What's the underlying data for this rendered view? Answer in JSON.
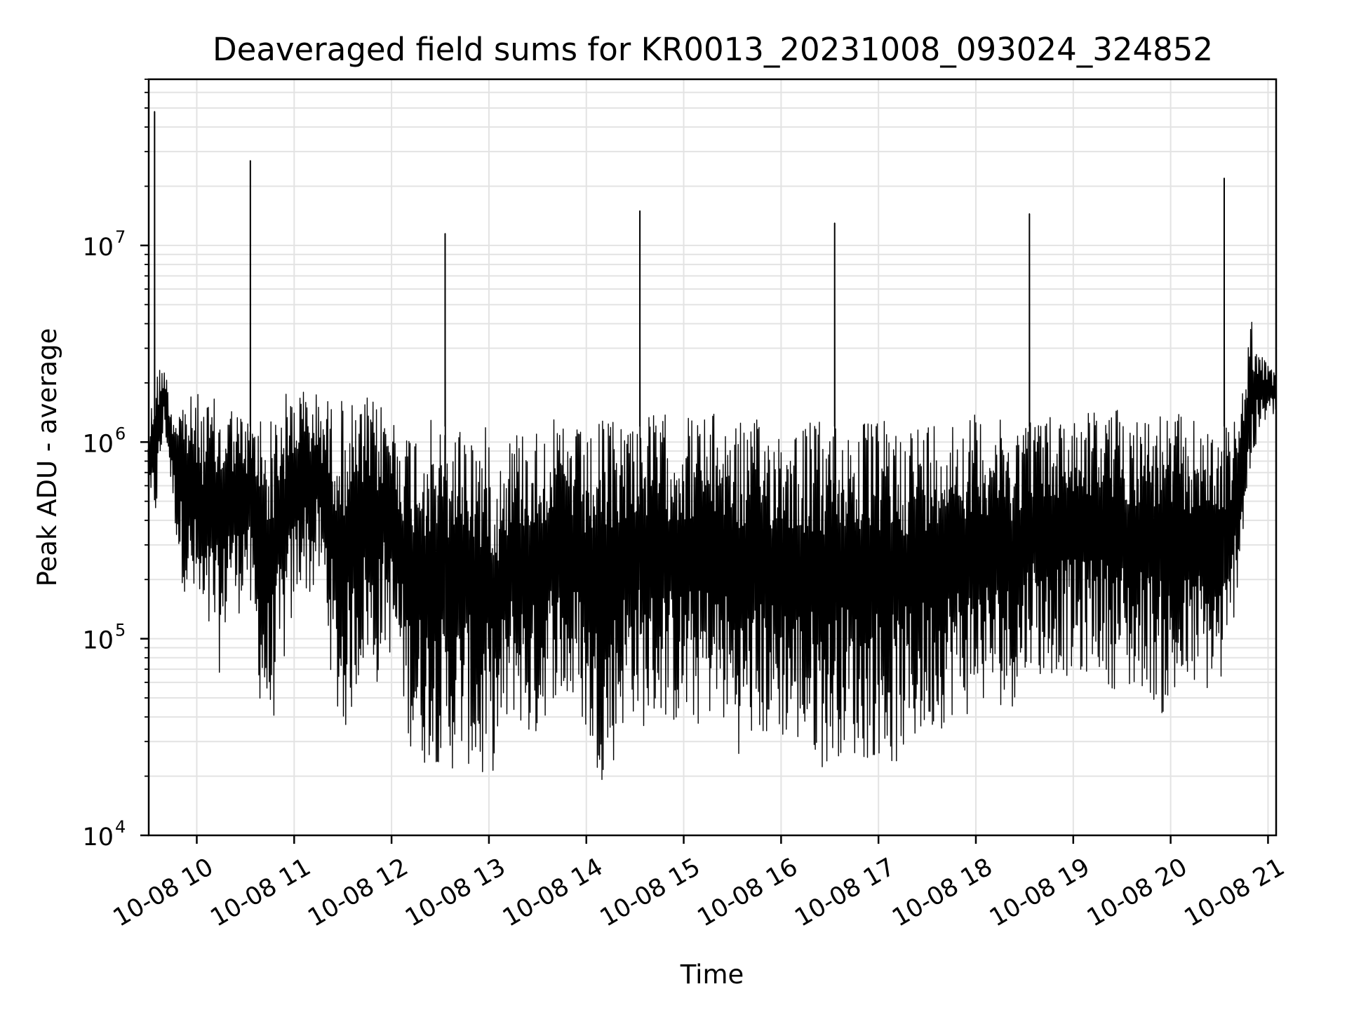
{
  "chart_data": {
    "type": "line",
    "title": "Deaveraged field sums for KR0013_20231008_093024_324852",
    "xlabel": "Time",
    "ylabel": "Peak ADU - average",
    "yscale": "log",
    "ylim": [
      10000,
      70000000
    ],
    "xlim": [
      "2023-10-08 09:30:24",
      "2023-10-08 21:05:00"
    ],
    "grid": true,
    "line_color": "#000000",
    "grid_color": "#e3e3e3",
    "x_ticks": [
      {
        "t": "2023-10-08 10:00",
        "label": "10-08 10"
      },
      {
        "t": "2023-10-08 11:00",
        "label": "10-08 11"
      },
      {
        "t": "2023-10-08 12:00",
        "label": "10-08 12"
      },
      {
        "t": "2023-10-08 13:00",
        "label": "10-08 13"
      },
      {
        "t": "2023-10-08 14:00",
        "label": "10-08 14"
      },
      {
        "t": "2023-10-08 15:00",
        "label": "10-08 15"
      },
      {
        "t": "2023-10-08 16:00",
        "label": "10-08 16"
      },
      {
        "t": "2023-10-08 17:00",
        "label": "10-08 17"
      },
      {
        "t": "2023-10-08 18:00",
        "label": "10-08 18"
      },
      {
        "t": "2023-10-08 19:00",
        "label": "10-08 19"
      },
      {
        "t": "2023-10-08 20:00",
        "label": "10-08 20"
      },
      {
        "t": "2023-10-08 21:00",
        "label": "10-08 21"
      }
    ],
    "y_ticks": [
      {
        "value": 10000,
        "base": "10",
        "exp": "4"
      },
      {
        "value": 100000,
        "base": "10",
        "exp": "5"
      },
      {
        "value": 1000000,
        "base": "10",
        "exp": "6"
      },
      {
        "value": 10000000,
        "base": "10",
        "exp": "7"
      }
    ],
    "series": [
      {
        "x": [
          "2023-10-08 09:30",
          "2023-10-08 09:35",
          "2023-10-08 09:40",
          "2023-10-08 09:45",
          "2023-10-08 09:50",
          "2023-10-08 09:55",
          "2023-10-08 10:00",
          "2023-10-08 10:05",
          "2023-10-08 10:10",
          "2023-10-08 10:15",
          "2023-10-08 10:20",
          "2023-10-08 10:25",
          "2023-10-08 10:30",
          "2023-10-08 10:35",
          "2023-10-08 10:40",
          "2023-10-08 10:45",
          "2023-10-08 10:50",
          "2023-10-08 10:55",
          "2023-10-08 11:00",
          "2023-10-08 11:05",
          "2023-10-08 11:10",
          "2023-10-08 11:15",
          "2023-10-08 11:20",
          "2023-10-08 11:25",
          "2023-10-08 11:30",
          "2023-10-08 11:35",
          "2023-10-08 11:40",
          "2023-10-08 11:45",
          "2023-10-08 11:50",
          "2023-10-08 11:55",
          "2023-10-08 12:00",
          "2023-10-08 12:05",
          "2023-10-08 12:10",
          "2023-10-08 12:15",
          "2023-10-08 12:20",
          "2023-10-08 12:25",
          "2023-10-08 12:30",
          "2023-10-08 12:35",
          "2023-10-08 12:40",
          "2023-10-08 12:45",
          "2023-10-08 12:50",
          "2023-10-08 12:55",
          "2023-10-08 13:00",
          "2023-10-08 13:05",
          "2023-10-08 13:10",
          "2023-10-08 13:15",
          "2023-10-08 13:20",
          "2023-10-08 13:25",
          "2023-10-08 13:30",
          "2023-10-08 13:35",
          "2023-10-08 13:40",
          "2023-10-08 13:45",
          "2023-10-08 13:50",
          "2023-10-08 13:55",
          "2023-10-08 14:00",
          "2023-10-08 14:05",
          "2023-10-08 14:10",
          "2023-10-08 14:15",
          "2023-10-08 14:20",
          "2023-10-08 14:25",
          "2023-10-08 14:30",
          "2023-10-08 14:35",
          "2023-10-08 14:40",
          "2023-10-08 14:45",
          "2023-10-08 14:50",
          "2023-10-08 14:55",
          "2023-10-08 15:00",
          "2023-10-08 15:05",
          "2023-10-08 15:10",
          "2023-10-08 15:15",
          "2023-10-08 15:20",
          "2023-10-08 15:25",
          "2023-10-08 15:30",
          "2023-10-08 15:35",
          "2023-10-08 15:40",
          "2023-10-08 15:45",
          "2023-10-08 15:50",
          "2023-10-08 15:55",
          "2023-10-08 16:00",
          "2023-10-08 16:05",
          "2023-10-08 16:10",
          "2023-10-08 16:15",
          "2023-10-08 16:20",
          "2023-10-08 16:25",
          "2023-10-08 16:30",
          "2023-10-08 16:35",
          "2023-10-08 16:40",
          "2023-10-08 16:45",
          "2023-10-08 16:50",
          "2023-10-08 16:55",
          "2023-10-08 17:00",
          "2023-10-08 17:05",
          "2023-10-08 17:10",
          "2023-10-08 17:15",
          "2023-10-08 17:20",
          "2023-10-08 17:25",
          "2023-10-08 17:30",
          "2023-10-08 17:35",
          "2023-10-08 17:40",
          "2023-10-08 17:45",
          "2023-10-08 17:50",
          "2023-10-08 17:55",
          "2023-10-08 18:00",
          "2023-10-08 18:05",
          "2023-10-08 18:10",
          "2023-10-08 18:15",
          "2023-10-08 18:20",
          "2023-10-08 18:25",
          "2023-10-08 18:30",
          "2023-10-08 18:35",
          "2023-10-08 18:40",
          "2023-10-08 18:45",
          "2023-10-08 18:50",
          "2023-10-08 18:55",
          "2023-10-08 19:00",
          "2023-10-08 19:05",
          "2023-10-08 19:10",
          "2023-10-08 19:15",
          "2023-10-08 19:20",
          "2023-10-08 19:25",
          "2023-10-08 19:30",
          "2023-10-08 19:35",
          "2023-10-08 19:40",
          "2023-10-08 19:45",
          "2023-10-08 19:50",
          "2023-10-08 19:55",
          "2023-10-08 20:00",
          "2023-10-08 20:05",
          "2023-10-08 20:10",
          "2023-10-08 20:15",
          "2023-10-08 20:20",
          "2023-10-08 20:25",
          "2023-10-08 20:30",
          "2023-10-08 20:35",
          "2023-10-08 20:40",
          "2023-10-08 20:45",
          "2023-10-08 20:50",
          "2023-10-08 20:55",
          "2023-10-08 21:00",
          "2023-10-08 21:05"
        ],
        "low": [
          380000,
          400000,
          1200000,
          500000,
          200000,
          150000,
          130000,
          80000,
          100000,
          60000,
          180000,
          120000,
          200000,
          90000,
          40000,
          30000,
          50000,
          80000,
          130000,
          200000,
          150000,
          200000,
          120000,
          40000,
          30000,
          40000,
          60000,
          80000,
          50000,
          90000,
          80000,
          60000,
          30000,
          25000,
          22000,
          25000,
          22000,
          20000,
          22000,
          25000,
          20000,
          16000,
          20000,
          22000,
          30000,
          40000,
          35000,
          28000,
          30000,
          40000,
          50000,
          45000,
          40000,
          45000,
          30000,
          22000,
          19000,
          20000,
          30000,
          40000,
          40000,
          35000,
          35000,
          40000,
          38000,
          35000,
          35000,
          35000,
          35000,
          40000,
          38000,
          35000,
          30000,
          25000,
          30000,
          28000,
          30000,
          30000,
          30000,
          30000,
          28000,
          25000,
          25000,
          22000,
          22000,
          25000,
          28000,
          25000,
          22000,
          25000,
          25000,
          22000,
          22000,
          25000,
          25000,
          30000,
          30000,
          35000,
          35000,
          40000,
          40000,
          40000,
          45000,
          45000,
          45000,
          45000,
          45000,
          45000,
          60000,
          80000,
          60000,
          60000,
          70000,
          65000,
          60000,
          60000,
          70000,
          70000,
          60000,
          55000,
          60000,
          50000,
          50000,
          60000,
          45000,
          40000,
          40000,
          45000,
          50000,
          55000,
          55000,
          50000,
          55000,
          60000,
          150000,
          350000,
          700000,
          1100000,
          1300000,
          1400000
        ],
        "high": [
          1200000,
          2400000,
          2500000,
          1500000,
          1800000,
          1700000,
          1800000,
          1600000,
          1700000,
          1500000,
          1600000,
          1500000,
          1300000,
          1400000,
          1500000,
          1300000,
          1600000,
          1800000,
          1900000,
          1900000,
          1800000,
          1800000,
          1700000,
          1600000,
          1700000,
          1600000,
          1500000,
          1700000,
          1600000,
          1600000,
          1500000,
          1200000,
          1200000,
          1300000,
          1300000,
          1300000,
          1200000,
          1200000,
          1300000,
          1300000,
          1200000,
          1200000,
          1200000,
          800000,
          1100000,
          1200000,
          1200000,
          1300000,
          1200000,
          1300000,
          1300000,
          1200000,
          1200000,
          1200000,
          1000000,
          1200000,
          1300000,
          1400000,
          1400000,
          1400000,
          1400000,
          1400000,
          1400000,
          1400000,
          1400000,
          1300000,
          1400000,
          1400000,
          1400000,
          1400000,
          1400000,
          1400000,
          1400000,
          1300000,
          1300000,
          1300000,
          1300000,
          1300000,
          1300000,
          1300000,
          1300000,
          1300000,
          1300000,
          1300000,
          1300000,
          1300000,
          1300000,
          1300000,
          1300000,
          1300000,
          1300000,
          1300000,
          1300000,
          1300000,
          1300000,
          1300000,
          1300000,
          1400000,
          1400000,
          1400000,
          1400000,
          1400000,
          1400000,
          1400000,
          1400000,
          1300000,
          1200000,
          1300000,
          1400000,
          1400000,
          1400000,
          1400000,
          1400000,
          1400000,
          1500000,
          1500000,
          1500000,
          1500000,
          1500000,
          1500000,
          1500000,
          1500000,
          1500000,
          1400000,
          1500000,
          1400000,
          1400000,
          1400000,
          1300000,
          1300000,
          1300000,
          1200000,
          1200000,
          1200000,
          1300000,
          2000000,
          4500000,
          2800000,
          2500000,
          2200000
        ],
        "spikes": [
          {
            "t": "2023-10-08 09:34",
            "value": 48000000
          },
          {
            "t": "2023-10-08 10:33",
            "value": 27000000
          },
          {
            "t": "2023-10-08 12:33",
            "value": 11500000
          },
          {
            "t": "2023-10-08 14:33",
            "value": 15000000
          },
          {
            "t": "2023-10-08 16:33",
            "value": 13000000
          },
          {
            "t": "2023-10-08 18:33",
            "value": 14500000
          },
          {
            "t": "2023-10-08 20:33",
            "value": 22000000
          }
        ]
      }
    ]
  }
}
